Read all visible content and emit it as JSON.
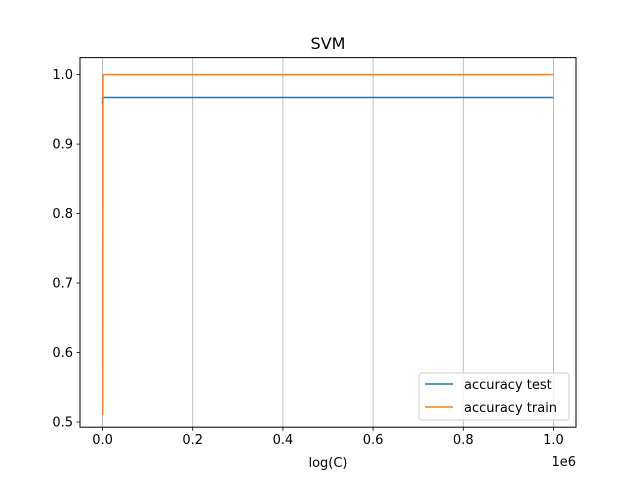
{
  "chart_data": {
    "type": "line",
    "title": "SVM",
    "xlabel": "log(C)",
    "ylabel": "",
    "x_offset_label": "1e6",
    "xlim": [
      -0.05,
      1.05
    ],
    "ylim": [
      0.4925,
      1.0245
    ],
    "grid": "x",
    "x_ticks": [
      0.0,
      0.2,
      0.4,
      0.6,
      0.8,
      1.0
    ],
    "x_tick_labels": [
      "0.0",
      "0.2",
      "0.4",
      "0.6",
      "0.8",
      "1.0"
    ],
    "y_ticks": [
      0.5,
      0.6,
      0.7,
      0.8,
      0.9,
      1.0
    ],
    "y_tick_labels": [
      "0.5",
      "0.6",
      "0.7",
      "0.8",
      "0.9",
      "1.0"
    ],
    "legend_position": "lower-right",
    "series": [
      {
        "name": "accuracy test",
        "color": "#1f77b4",
        "x": [
          0.0,
          0.0001,
          0.001,
          0.01,
          0.1,
          1.0
        ],
        "y": [
          0.958,
          0.967,
          0.967,
          0.967,
          0.967,
          0.967
        ]
      },
      {
        "name": "accuracy train",
        "color": "#ff7f0e",
        "x": [
          0.0,
          0.0005,
          0.001,
          0.002,
          0.01,
          0.1,
          1.0
        ],
        "y": [
          0.51,
          0.515,
          1.0,
          1.0,
          1.0,
          1.0,
          1.0
        ]
      }
    ]
  }
}
